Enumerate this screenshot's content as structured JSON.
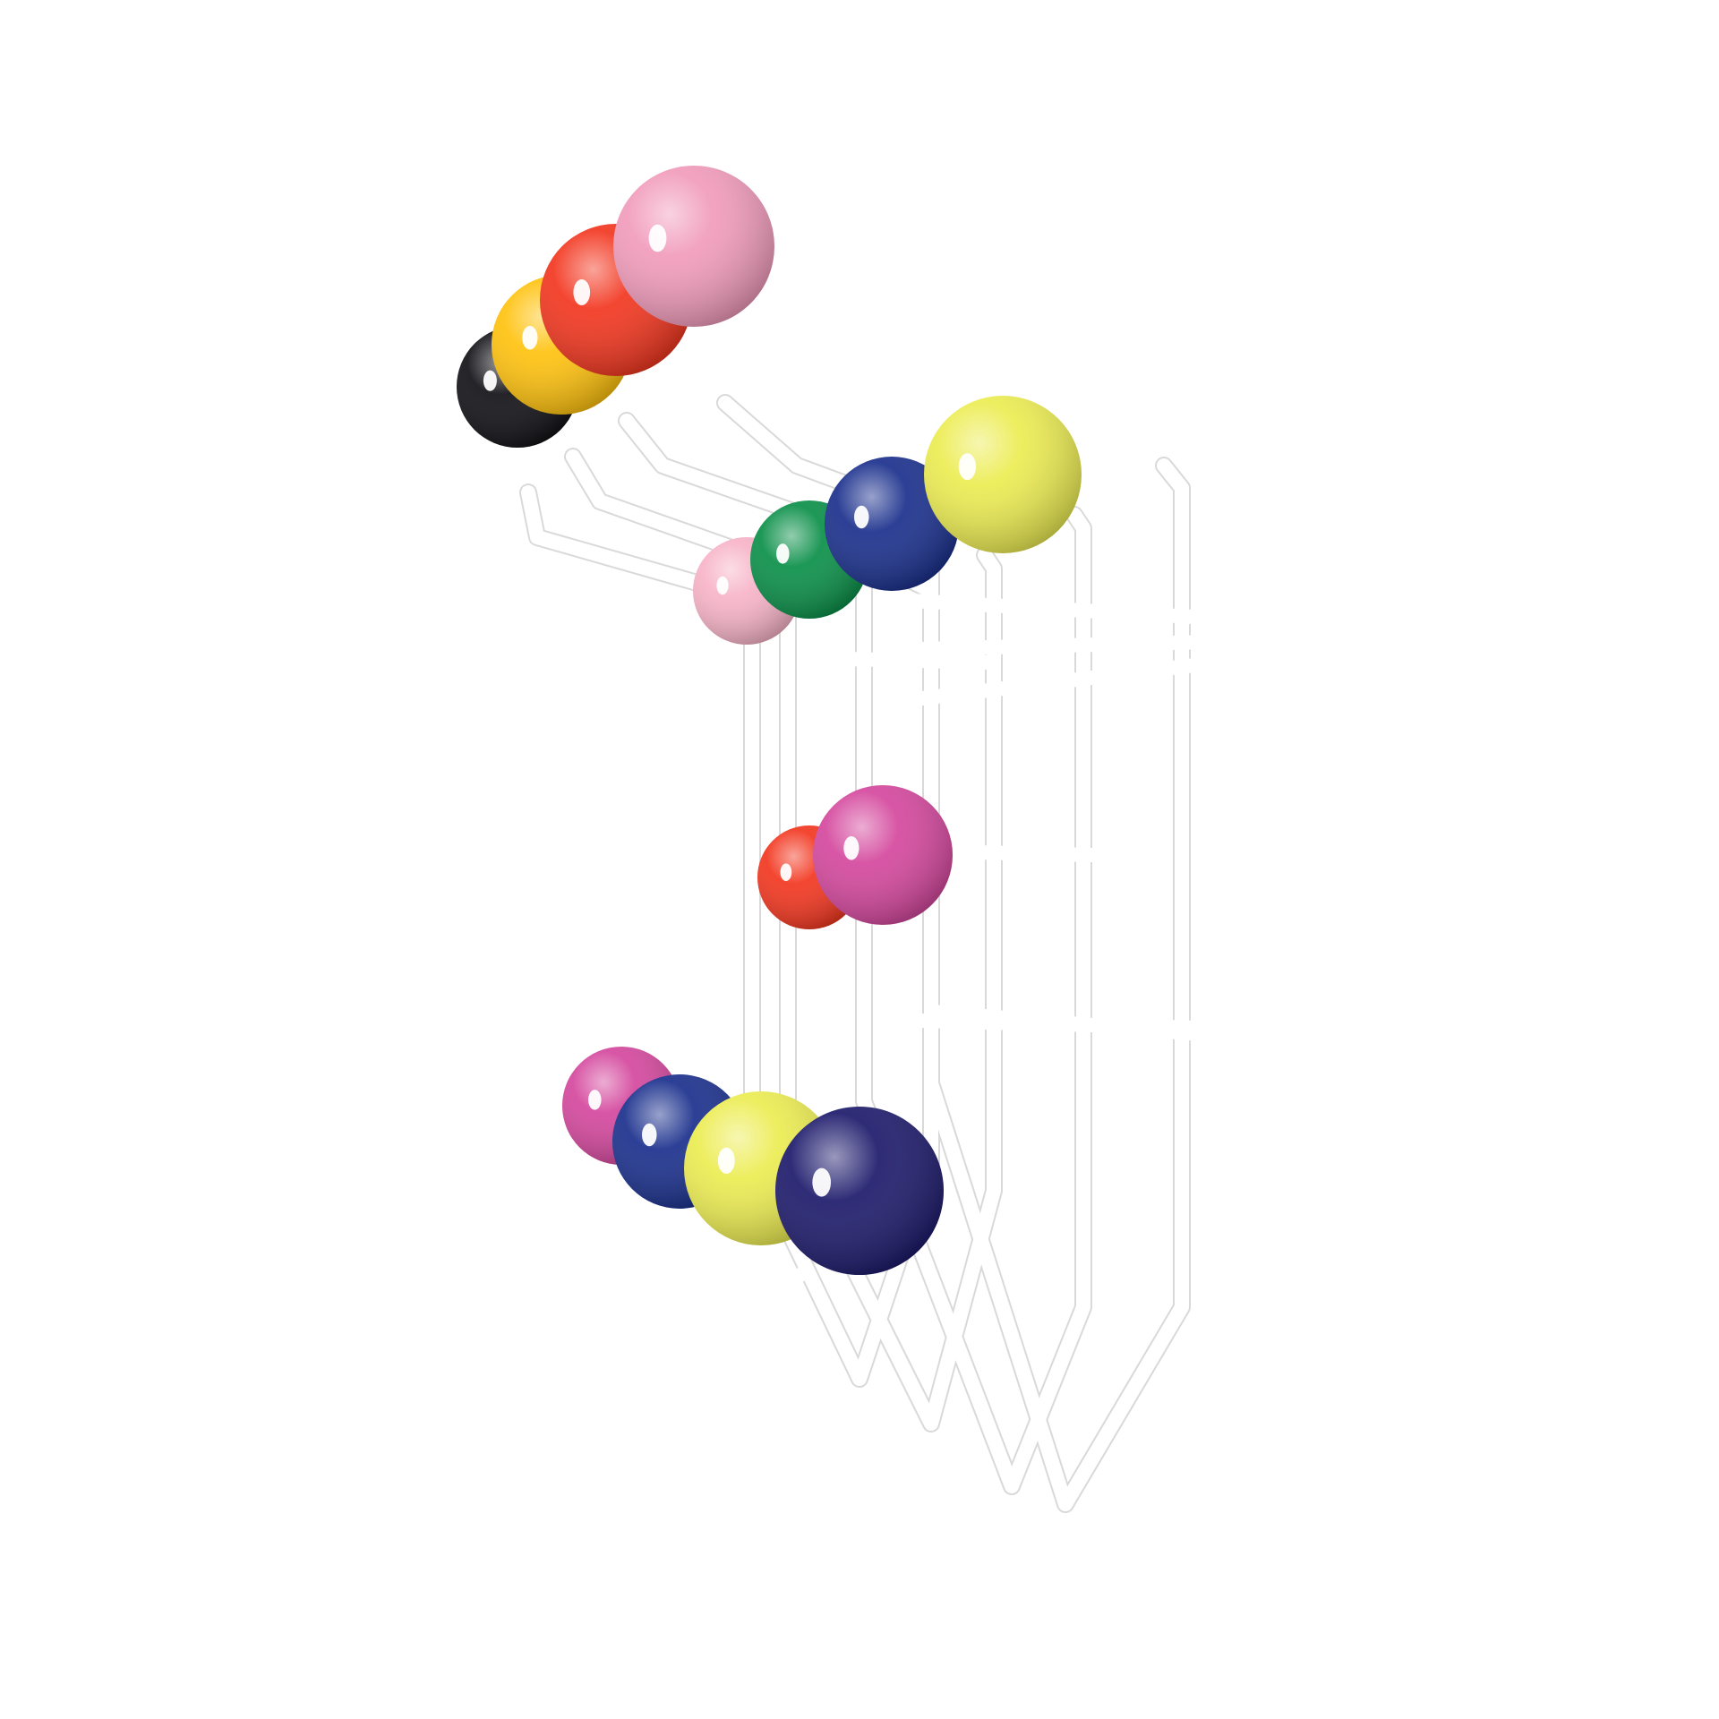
{
  "photo": {
    "subject": "colorful-ball-wall-coat-rack",
    "background_color": "#ffffff",
    "frame_color": "#ffffff",
    "frame_shadow_color": "#d9d9d9",
    "ball_colors": {
      "pink": "#f19bbb",
      "red": "#f2361f",
      "yellow": "#ffc20e",
      "black": "#111116",
      "light_pink": "#f7b3c7",
      "green": "#0a8f48",
      "blue": "#1a2f8c",
      "lime": "#ecec52",
      "magenta": "#d4479d",
      "navy": "#1d1a6b"
    }
  }
}
